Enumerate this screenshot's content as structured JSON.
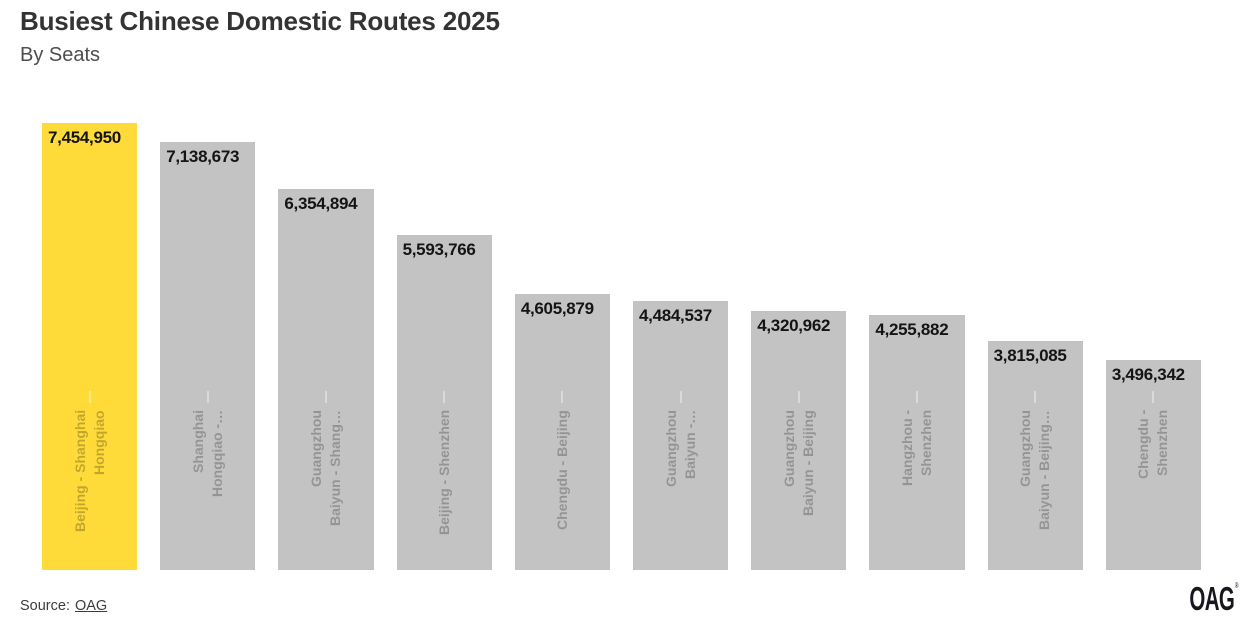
{
  "page": {
    "background": "#FFFFFF"
  },
  "header": {
    "title": "Busiest Chinese Domestic Routes 2025",
    "subtitle": "By Seats"
  },
  "chart_data": {
    "type": "bar",
    "title": "Busiest Chinese Domestic Routes 2025",
    "subtitle": "By Seats",
    "orientation": "vertical",
    "value_unit": "seats",
    "xlabel": "",
    "ylabel": "",
    "ylim": [
      0,
      7454950
    ],
    "grid": false,
    "legend": "none",
    "axis_ticks_visible": false,
    "highlight_color": "#FFDB3A",
    "bar_color": "#C3C3C3",
    "value_label_color": "#141414",
    "category_label_style": "rotated-90-inside-bar-bottom",
    "categories": [
      "Beijing - Shanghai Hongqiao",
      "Shanghai Hongqiao -…",
      "Guangzhou Baiyun - Shang…",
      "Beijing - Shenzhen",
      "Chengdu - Beijing",
      "Guangzhou Baiyun -…",
      "Guangzhou Baiyun - Beijing",
      "Hangzhou - Shenzhen",
      "Guangzhou Baiyun - Beijing…",
      "Chengdu - Shenzhen"
    ],
    "values": [
      7454950,
      7138673,
      6354894,
      5593766,
      4605879,
      4484537,
      4320962,
      4255882,
      3815085,
      3496342
    ],
    "value_labels": [
      "7,454,950",
      "7,138,673",
      "6,354,894",
      "5,593,766",
      "4,605,879",
      "4,484,537",
      "4,320,962",
      "4,255,882",
      "3,815,085",
      "3,496,342"
    ],
    "bars": [
      {
        "category": "Beijing - Shanghai Hongqiao",
        "label_lines": [
          "Beijing - Shanghai",
          "Hongqiao"
        ],
        "value": 7454950,
        "value_label": "7,454,950",
        "highlighted": true
      },
      {
        "category": "Shanghai Hongqiao -…",
        "label_lines": [
          "Shanghai",
          "Hongqiao -…"
        ],
        "value": 7138673,
        "value_label": "7,138,673",
        "highlighted": false
      },
      {
        "category": "Guangzhou Baiyun - Shang…",
        "label_lines": [
          "Guangzhou",
          "Baiyun - Shang…"
        ],
        "value": 6354894,
        "value_label": "6,354,894",
        "highlighted": false
      },
      {
        "category": "Beijing - Shenzhen",
        "label_lines": [
          "Beijing - Shenzhen"
        ],
        "value": 5593766,
        "value_label": "5,593,766",
        "highlighted": false
      },
      {
        "category": "Chengdu - Beijing",
        "label_lines": [
          "Chengdu - Beijing"
        ],
        "value": 4605879,
        "value_label": "4,605,879",
        "highlighted": false
      },
      {
        "category": "Guangzhou Baiyun -…",
        "label_lines": [
          "Guangzhou",
          "Baiyun -…"
        ],
        "value": 4484537,
        "value_label": "4,484,537",
        "highlighted": false
      },
      {
        "category": "Guangzhou Baiyun - Beijing",
        "label_lines": [
          "Guangzhou",
          "Baiyun - Beijing"
        ],
        "value": 4320962,
        "value_label": "4,320,962",
        "highlighted": false
      },
      {
        "category": "Hangzhou - Shenzhen",
        "label_lines": [
          "Hangzhou -",
          "Shenzhen"
        ],
        "value": 4255882,
        "value_label": "4,255,882",
        "highlighted": false
      },
      {
        "category": "Guangzhou Baiyun - Beijing…",
        "label_lines": [
          "Guangzhou",
          "Baiyun - Beijing…"
        ],
        "value": 3815085,
        "value_label": "3,815,085",
        "highlighted": false
      },
      {
        "category": "Chengdu - Shenzhen",
        "label_lines": [
          "Chengdu -",
          "Shenzhen"
        ],
        "value": 3496342,
        "value_label": "3,496,342",
        "highlighted": false
      }
    ]
  },
  "footer": {
    "source_prefix": "Source:",
    "source_link_label": "OAG",
    "logo_text": "OAG",
    "logo_mark": "®"
  }
}
